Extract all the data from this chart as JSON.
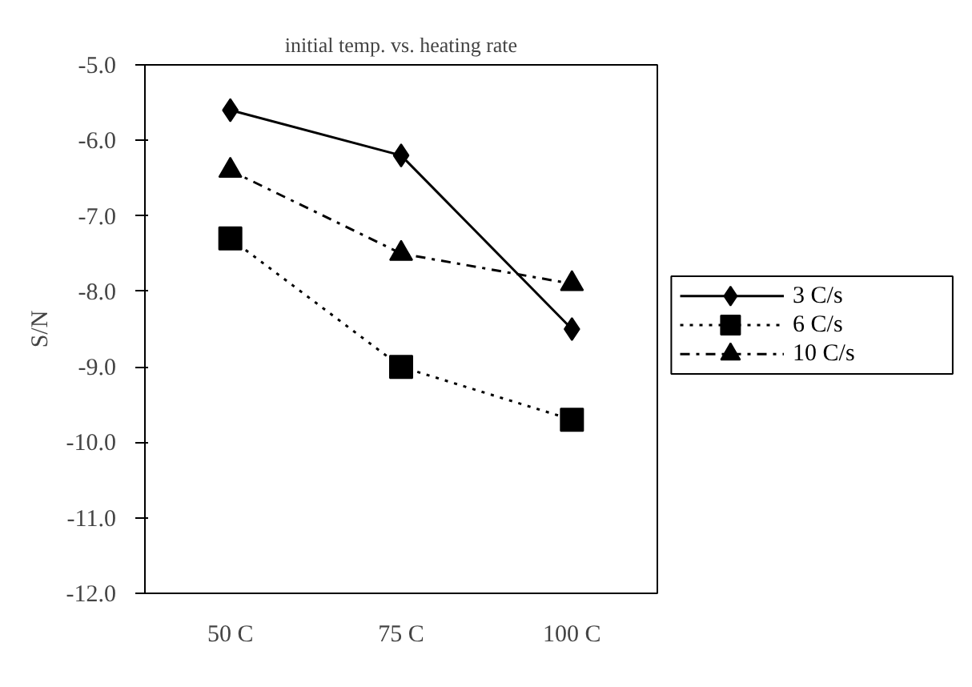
{
  "chart_data": {
    "type": "line",
    "title": "initial temp. vs. heating rate",
    "ylabel": "S/N",
    "categories": [
      "50 C",
      "75 C",
      "100 C"
    ],
    "series": [
      {
        "name": "3 C/s",
        "color": "#000000",
        "values": [
          -5.6,
          -6.2,
          -8.5
        ],
        "marker": "diamond",
        "line_style": "solid"
      },
      {
        "name": "6 C/s",
        "color": "#000000",
        "values": [
          -7.3,
          -9.0,
          -9.7
        ],
        "marker": "square",
        "line_style": "dotted"
      },
      {
        "name": "10 C/s",
        "color": "#000000",
        "values": [
          -6.4,
          -7.5,
          -7.9
        ],
        "marker": "triangle",
        "line_style": "dashdot"
      }
    ],
    "ylim": [
      -12,
      -5
    ],
    "yticks": [
      {
        "value": -5,
        "label": "-5.0"
      },
      {
        "value": -6,
        "label": "-6.0"
      },
      {
        "value": -7,
        "label": "-7.0"
      },
      {
        "value": -8,
        "label": "-8.0"
      },
      {
        "value": -9,
        "label": "-9.0"
      },
      {
        "value": -10,
        "label": "-10.0"
      },
      {
        "value": -11,
        "label": "-11.0"
      },
      {
        "value": -12,
        "label": "-12.0"
      }
    ],
    "grid": false,
    "legend": "right"
  }
}
